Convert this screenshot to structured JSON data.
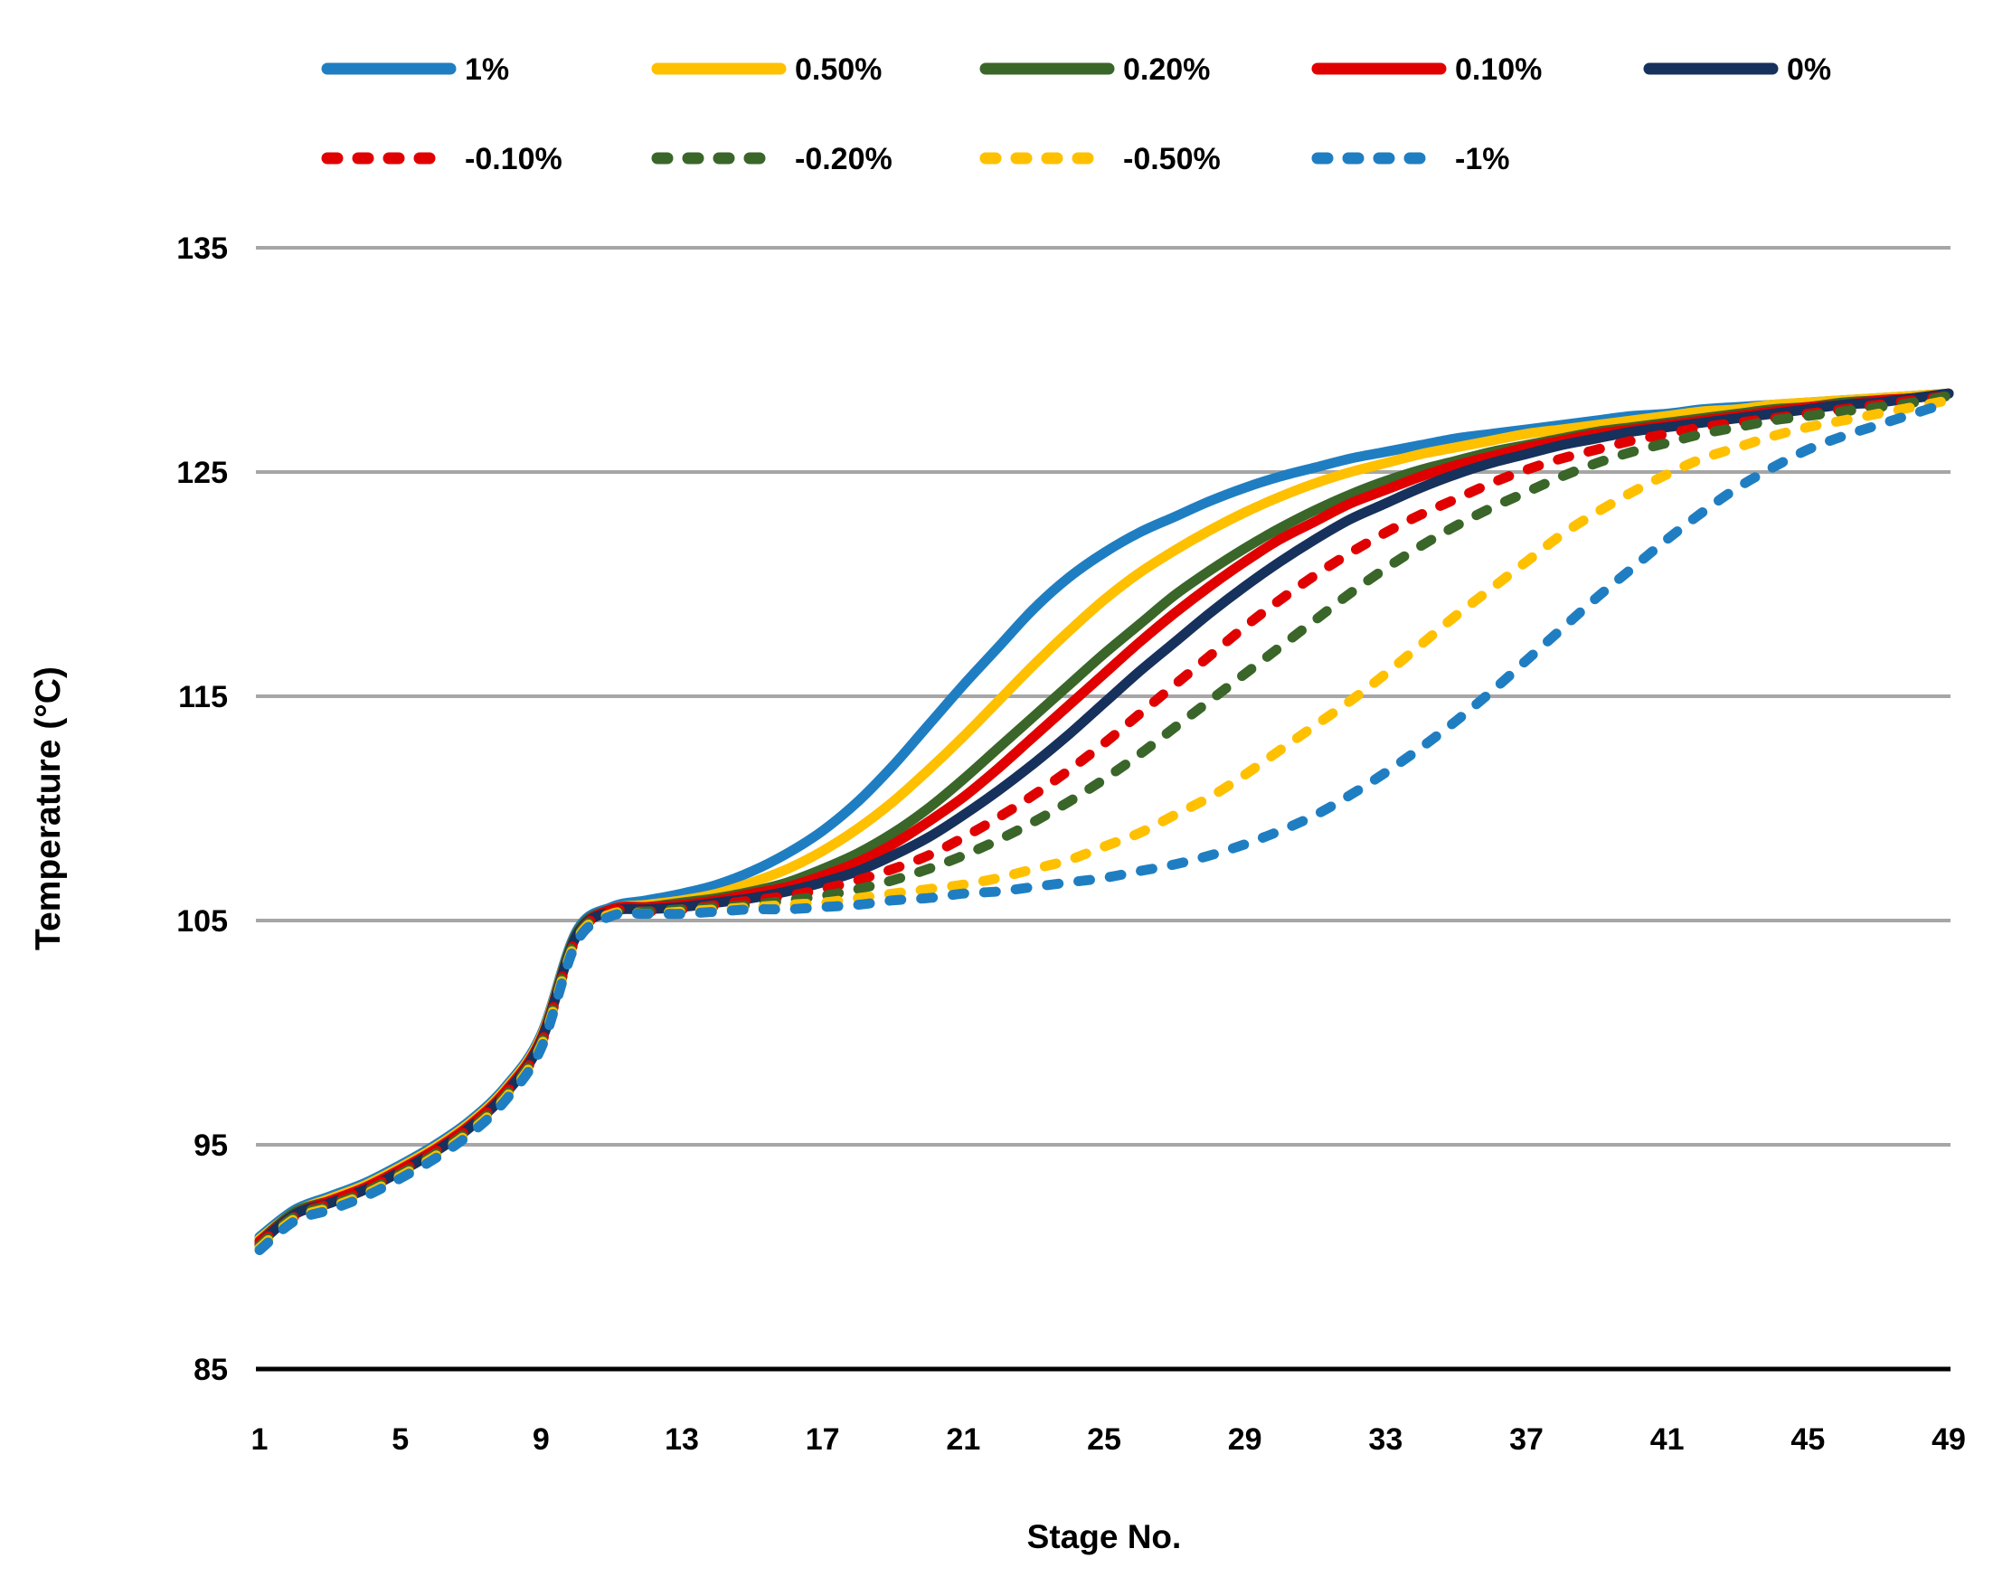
{
  "accent_colors": {
    "blue": "#1F7EC2",
    "yellow": "#FFC000",
    "green": "#3A6629",
    "red": "#E00000",
    "navy": "#16315C",
    "gridline": "#A6A6A6",
    "axis": "#000000"
  },
  "legend": {
    "rows": [
      [
        {
          "label": "1%",
          "color": "#1F7EC2",
          "style": "solid"
        },
        {
          "label": "0.50%",
          "color": "#FFC000",
          "style": "solid"
        },
        {
          "label": "0.20%",
          "color": "#3A6629",
          "style": "solid"
        },
        {
          "label": "0.10%",
          "color": "#E00000",
          "style": "solid"
        },
        {
          "label": "0%",
          "color": "#16315C",
          "style": "solid"
        }
      ],
      [
        {
          "label": "-0.10%",
          "color": "#E00000",
          "style": "dashed"
        },
        {
          "label": "-0.20%",
          "color": "#3A6629",
          "style": "dashed"
        },
        {
          "label": "-0.50%",
          "color": "#FFC000",
          "style": "dashed"
        },
        {
          "label": "-1%",
          "color": "#1F7EC2",
          "style": "dashed"
        }
      ]
    ]
  },
  "chart_data": {
    "type": "line",
    "title": "",
    "xlabel": "Stage No.",
    "ylabel": "Temperature (°C)",
    "xlim": [
      1,
      49
    ],
    "ylim": [
      85,
      135
    ],
    "x_ticks": [
      1,
      5,
      9,
      13,
      17,
      21,
      25,
      29,
      33,
      37,
      41,
      45,
      49
    ],
    "y_ticks": [
      85,
      95,
      105,
      115,
      125,
      135
    ],
    "grid": "horizontal",
    "legend_position": "top",
    "x": [
      1,
      2,
      3,
      4,
      5,
      6,
      7,
      8,
      9,
      10,
      11,
      12,
      13,
      14,
      15,
      16,
      17,
      18,
      19,
      20,
      21,
      22,
      23,
      24,
      25,
      26,
      27,
      28,
      29,
      30,
      31,
      32,
      33,
      34,
      35,
      36,
      37,
      38,
      39,
      40,
      41,
      42,
      43,
      44,
      45,
      46,
      47,
      48,
      49
    ],
    "series": [
      {
        "name": "1%",
        "color": "#1F7EC2",
        "style": "solid",
        "values": [
          90.9,
          92.1,
          92.7,
          93.3,
          94.1,
          95.0,
          96.1,
          97.6,
          99.9,
          104.5,
          105.6,
          105.9,
          106.2,
          106.6,
          107.2,
          108.0,
          109.0,
          110.3,
          111.9,
          113.7,
          115.5,
          117.2,
          118.9,
          120.3,
          121.4,
          122.3,
          123.0,
          123.7,
          124.3,
          124.8,
          125.2,
          125.6,
          125.9,
          126.2,
          126.5,
          126.7,
          126.9,
          127.1,
          127.3,
          127.5,
          127.6,
          127.8,
          127.9,
          128.0,
          128.1,
          128.2,
          128.3,
          128.4,
          128.5
        ]
      },
      {
        "name": "0.50%",
        "color": "#FFC000",
        "style": "solid",
        "values": [
          90.8,
          92.0,
          92.6,
          93.2,
          94.0,
          94.9,
          96.0,
          97.5,
          99.8,
          104.4,
          105.5,
          105.7,
          105.9,
          106.2,
          106.7,
          107.3,
          108.1,
          109.1,
          110.3,
          111.7,
          113.2,
          114.8,
          116.4,
          117.9,
          119.3,
          120.5,
          121.5,
          122.4,
          123.2,
          123.9,
          124.5,
          125.0,
          125.4,
          125.8,
          126.1,
          126.4,
          126.7,
          126.9,
          127.1,
          127.3,
          127.5,
          127.7,
          127.8,
          128.0,
          128.1,
          128.2,
          128.3,
          128.4,
          128.5
        ]
      },
      {
        "name": "0.20%",
        "color": "#3A6629",
        "style": "solid",
        "values": [
          90.7,
          92.0,
          92.5,
          93.1,
          93.9,
          94.8,
          95.9,
          97.4,
          99.7,
          104.4,
          105.5,
          105.6,
          105.8,
          106.0,
          106.3,
          106.7,
          107.3,
          108.0,
          108.9,
          110.0,
          111.3,
          112.7,
          114.1,
          115.5,
          116.9,
          118.2,
          119.5,
          120.6,
          121.6,
          122.5,
          123.3,
          124.0,
          124.6,
          125.1,
          125.5,
          125.9,
          126.2,
          126.5,
          126.8,
          127.0,
          127.2,
          127.4,
          127.6,
          127.8,
          127.9,
          128.1,
          128.2,
          128.3,
          128.5
        ]
      },
      {
        "name": "0.10%",
        "color": "#E00000",
        "style": "solid",
        "values": [
          90.7,
          91.9,
          92.5,
          93.1,
          93.9,
          94.8,
          95.9,
          97.4,
          99.7,
          104.3,
          105.5,
          105.6,
          105.7,
          105.9,
          106.2,
          106.5,
          107.0,
          107.6,
          108.4,
          109.4,
          110.5,
          111.8,
          113.2,
          114.6,
          116.0,
          117.4,
          118.7,
          119.9,
          121.0,
          122.0,
          122.8,
          123.6,
          124.2,
          124.8,
          125.3,
          125.7,
          126.1,
          126.4,
          126.7,
          126.9,
          127.1,
          127.3,
          127.5,
          127.7,
          127.9,
          128.0,
          128.2,
          128.3,
          128.5
        ]
      },
      {
        "name": "0%",
        "color": "#16315C",
        "style": "solid",
        "values": [
          90.6,
          91.9,
          92.4,
          93.0,
          93.8,
          94.7,
          95.8,
          97.3,
          99.6,
          104.3,
          105.4,
          105.5,
          105.6,
          105.8,
          106.0,
          106.3,
          106.7,
          107.2,
          107.9,
          108.7,
          109.7,
          110.8,
          112.0,
          113.3,
          114.7,
          116.1,
          117.4,
          118.7,
          119.9,
          121.0,
          122.0,
          122.9,
          123.6,
          124.3,
          124.9,
          125.4,
          125.8,
          126.2,
          126.5,
          126.8,
          127.0,
          127.2,
          127.4,
          127.6,
          127.8,
          128.0,
          128.1,
          128.3,
          128.5
        ]
      },
      {
        "name": "-0.10%",
        "color": "#E00000",
        "style": "dashed",
        "values": [
          90.6,
          91.8,
          92.4,
          93.0,
          93.8,
          94.7,
          95.8,
          97.3,
          99.5,
          104.2,
          105.4,
          105.4,
          105.5,
          105.7,
          105.9,
          106.1,
          106.4,
          106.8,
          107.3,
          107.9,
          108.7,
          109.6,
          110.6,
          111.7,
          112.9,
          114.2,
          115.5,
          116.8,
          118.1,
          119.3,
          120.4,
          121.4,
          122.3,
          123.1,
          123.8,
          124.5,
          125.1,
          125.6,
          126.0,
          126.4,
          126.7,
          127.0,
          127.2,
          127.4,
          127.6,
          127.8,
          128.0,
          128.2,
          128.4
        ]
      },
      {
        "name": "-0.20%",
        "color": "#3A6629",
        "style": "dashed",
        "values": [
          90.5,
          91.8,
          92.3,
          92.9,
          93.7,
          94.6,
          95.7,
          97.2,
          99.5,
          104.2,
          105.3,
          105.4,
          105.5,
          105.6,
          105.7,
          105.9,
          106.1,
          106.4,
          106.8,
          107.3,
          107.9,
          108.6,
          109.4,
          110.3,
          111.3,
          112.4,
          113.6,
          114.8,
          116.0,
          117.2,
          118.4,
          119.6,
          120.7,
          121.7,
          122.6,
          123.4,
          124.1,
          124.8,
          125.4,
          125.9,
          126.3,
          126.7,
          127.0,
          127.3,
          127.5,
          127.7,
          127.9,
          128.1,
          128.4
        ]
      },
      {
        "name": "-0.50%",
        "color": "#FFC000",
        "style": "dashed",
        "values": [
          90.4,
          91.7,
          92.2,
          92.8,
          93.6,
          94.5,
          95.6,
          97.1,
          99.4,
          104.1,
          105.3,
          105.3,
          105.4,
          105.5,
          105.6,
          105.7,
          105.8,
          106.0,
          106.2,
          106.4,
          106.6,
          106.9,
          107.3,
          107.7,
          108.3,
          108.9,
          109.7,
          110.5,
          111.5,
          112.6,
          113.7,
          114.8,
          116.0,
          117.3,
          118.6,
          119.8,
          121.0,
          122.2,
          123.2,
          124.1,
          124.9,
          125.6,
          126.1,
          126.6,
          127.0,
          127.3,
          127.6,
          127.9,
          128.2
        ]
      },
      {
        "name": "-1%",
        "color": "#1F7EC2",
        "style": "dashed",
        "values": [
          90.3,
          91.6,
          92.1,
          92.7,
          93.5,
          94.4,
          95.5,
          97.0,
          99.3,
          104.0,
          105.2,
          105.3,
          105.3,
          105.4,
          105.5,
          105.5,
          105.6,
          105.7,
          105.9,
          106.0,
          106.2,
          106.3,
          106.5,
          106.7,
          106.9,
          107.2,
          107.5,
          107.9,
          108.4,
          109.0,
          109.7,
          110.6,
          111.6,
          112.7,
          113.9,
          115.2,
          116.6,
          118.0,
          119.4,
          120.7,
          122.0,
          123.2,
          124.3,
          125.2,
          126.0,
          126.6,
          127.1,
          127.6,
          128.1
        ]
      }
    ]
  }
}
